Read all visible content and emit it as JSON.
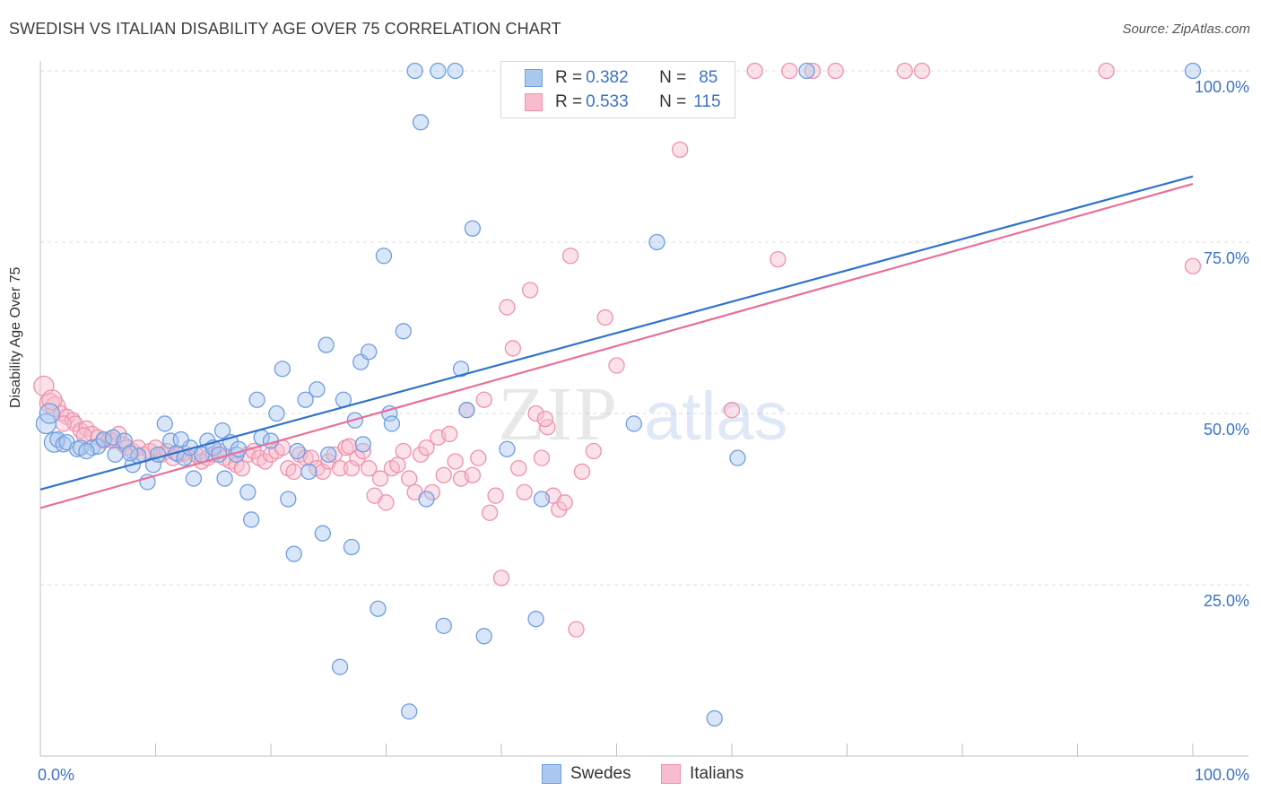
{
  "header": {
    "title": "SWEDISH VS ITALIAN DISABILITY AGE OVER 75 CORRELATION CHART",
    "source": "Source: ZipAtlas.com"
  },
  "watermark": {
    "zip": "ZIP",
    "atlas": "atlas"
  },
  "colors": {
    "swedes_fill": "#aac8f0",
    "swedes_stroke": "#6f9ee0",
    "swedes_line": "#2f73c9",
    "italians_fill": "#f7bccd",
    "italians_stroke": "#ee92ad",
    "italians_line": "#e8709a",
    "axis_text": "#3a73c9",
    "grid": "#dddddd"
  },
  "legend_top": {
    "rows": [
      {
        "r_label": "R =",
        "r_value": "0.382",
        "n_label": "N =",
        "n_value": "85"
      },
      {
        "r_label": "R =",
        "r_value": "0.533",
        "n_label": "N =",
        "n_value": "115"
      }
    ]
  },
  "legend_bottom": {
    "swedes": "Swedes",
    "italians": "Italians"
  },
  "chart_data": {
    "type": "scatter",
    "title": "SWEDISH VS ITALIAN DISABILITY AGE OVER 75 CORRELATION CHART",
    "xlabel": "",
    "ylabel": "Disability Age Over 75",
    "xlim": [
      0,
      100
    ],
    "ylim": [
      0,
      100
    ],
    "x_tick_labels": [
      "0.0%",
      "100.0%"
    ],
    "y_ticks": [
      25,
      50,
      75,
      100
    ],
    "y_tick_labels": [
      "25.0%",
      "50.0%",
      "75.0%",
      "100.0%"
    ],
    "grid": true,
    "legend_position": "top-center",
    "series": [
      {
        "name": "Swedes",
        "r": 0.382,
        "n": 85,
        "trend": {
          "x": [
            0,
            100
          ],
          "y": [
            38.9,
            84.6
          ]
        },
        "points": [
          [
            0.5,
            48.5
          ],
          [
            1.2,
            45.8
          ],
          [
            1.5,
            46.2
          ],
          [
            2,
            45.5
          ],
          [
            2.3,
            45.8
          ],
          [
            3.2,
            44.8
          ],
          [
            3.5,
            45
          ],
          [
            4.5,
            45
          ],
          [
            5,
            45.2
          ],
          [
            5.5,
            46.2
          ],
          [
            6.3,
            46.5
          ],
          [
            6.5,
            44
          ],
          [
            7.3,
            46
          ],
          [
            8,
            42.5
          ],
          [
            8.5,
            43.8
          ],
          [
            9.3,
            40
          ],
          [
            9.8,
            42.5
          ],
          [
            10.2,
            44
          ],
          [
            10.8,
            48.5
          ],
          [
            11.3,
            46
          ],
          [
            11.8,
            44.2
          ],
          [
            12.5,
            43.5
          ],
          [
            13,
            45
          ],
          [
            13.3,
            40.5
          ],
          [
            14,
            44
          ],
          [
            14.5,
            46
          ],
          [
            15,
            45
          ],
          [
            15.5,
            44
          ],
          [
            15.8,
            47.5
          ],
          [
            16,
            40.5
          ],
          [
            16.5,
            45.8
          ],
          [
            17,
            44
          ],
          [
            18,
            38.5
          ],
          [
            18.3,
            34.5
          ],
          [
            18.8,
            52
          ],
          [
            19.2,
            46.5
          ],
          [
            20,
            46
          ],
          [
            20.5,
            50
          ],
          [
            21,
            56.5
          ],
          [
            21.5,
            37.5
          ],
          [
            22,
            29.5
          ],
          [
            22.3,
            44.5
          ],
          [
            23,
            52
          ],
          [
            23.3,
            41.5
          ],
          [
            24,
            53.5
          ],
          [
            24.5,
            32.5
          ],
          [
            24.8,
            60
          ],
          [
            25,
            44
          ],
          [
            26,
            13
          ],
          [
            26.3,
            52
          ],
          [
            27,
            30.5
          ],
          [
            27.3,
            49
          ],
          [
            27.8,
            57.5
          ],
          [
            28,
            45.5
          ],
          [
            28.5,
            59
          ],
          [
            29.3,
            21.5
          ],
          [
            29.8,
            73
          ],
          [
            30.3,
            50
          ],
          [
            30.5,
            48.5
          ],
          [
            31.5,
            62
          ],
          [
            32,
            6.5
          ],
          [
            32.5,
            100
          ],
          [
            33,
            92.5
          ],
          [
            33.5,
            37.5
          ],
          [
            34.5,
            100
          ],
          [
            35,
            19
          ],
          [
            36,
            100
          ],
          [
            36.5,
            56.5
          ],
          [
            37,
            50.5
          ],
          [
            37.5,
            77
          ],
          [
            38.5,
            17.5
          ],
          [
            40.5,
            44.8
          ],
          [
            43,
            20
          ],
          [
            43.5,
            37.5
          ],
          [
            51.5,
            48.5
          ],
          [
            53.5,
            75
          ],
          [
            58.5,
            5.5
          ],
          [
            60.5,
            43.5
          ],
          [
            66.5,
            100
          ],
          [
            100,
            100
          ],
          [
            0.8,
            50
          ],
          [
            4,
            44.5
          ],
          [
            7.8,
            44.2
          ],
          [
            12.2,
            46.2
          ],
          [
            17.2,
            44.8
          ]
        ]
      },
      {
        "name": "Italians",
        "r": 0.533,
        "n": 115,
        "trend": {
          "x": [
            0,
            100
          ],
          "y": [
            36.2,
            83.5
          ]
        },
        "points": [
          [
            0.3,
            54
          ],
          [
            0.8,
            51.5
          ],
          [
            1.3,
            51
          ],
          [
            1.8,
            50
          ],
          [
            2.3,
            49.5
          ],
          [
            2.8,
            49
          ],
          [
            3,
            48.5
          ],
          [
            3.5,
            47.5
          ],
          [
            4,
            47.8
          ],
          [
            4.5,
            47
          ],
          [
            5,
            46.5
          ],
          [
            5.5,
            46
          ],
          [
            6,
            46.2
          ],
          [
            6.3,
            46
          ],
          [
            6.8,
            47
          ],
          [
            7.2,
            45.5
          ],
          [
            7.5,
            45
          ],
          [
            8,
            44.5
          ],
          [
            8.5,
            45
          ],
          [
            9,
            44
          ],
          [
            9.5,
            44.5
          ],
          [
            10,
            45
          ],
          [
            10.5,
            44
          ],
          [
            11,
            44.5
          ],
          [
            11.5,
            43.5
          ],
          [
            12,
            44
          ],
          [
            12.5,
            44.2
          ],
          [
            13,
            43.5
          ],
          [
            13.5,
            44
          ],
          [
            14,
            43
          ],
          [
            14.5,
            43.5
          ],
          [
            15,
            44
          ],
          [
            15.5,
            44.5
          ],
          [
            16,
            43.5
          ],
          [
            16.5,
            43
          ],
          [
            17,
            42.5
          ],
          [
            17.5,
            42
          ],
          [
            18,
            44
          ],
          [
            18.5,
            44.5
          ],
          [
            19,
            43.5
          ],
          [
            19.5,
            43
          ],
          [
            20,
            44
          ],
          [
            20.5,
            44.5
          ],
          [
            21,
            45
          ],
          [
            21.5,
            42
          ],
          [
            22,
            41.5
          ],
          [
            22.5,
            44
          ],
          [
            23,
            43.5
          ],
          [
            23.5,
            43.5
          ],
          [
            24,
            42
          ],
          [
            24.5,
            41.5
          ],
          [
            25,
            43
          ],
          [
            25.5,
            44
          ],
          [
            26,
            42
          ],
          [
            26.5,
            45
          ],
          [
            27,
            42
          ],
          [
            27.5,
            43.5
          ],
          [
            28,
            44.5
          ],
          [
            28.5,
            42
          ],
          [
            29,
            38
          ],
          [
            29.5,
            40.5
          ],
          [
            30,
            37
          ],
          [
            30.5,
            42
          ],
          [
            31,
            42.5
          ],
          [
            31.5,
            44.5
          ],
          [
            32,
            40.5
          ],
          [
            32.5,
            38.5
          ],
          [
            33,
            44
          ],
          [
            33.5,
            45
          ],
          [
            34,
            38.5
          ],
          [
            34.5,
            46.5
          ],
          [
            35,
            41
          ],
          [
            35.5,
            47
          ],
          [
            36,
            43
          ],
          [
            36.5,
            40.5
          ],
          [
            37,
            50.5
          ],
          [
            37.5,
            41
          ],
          [
            38,
            43.5
          ],
          [
            38.5,
            52
          ],
          [
            39,
            35.5
          ],
          [
            39.5,
            38
          ],
          [
            40,
            26
          ],
          [
            40.5,
            65.5
          ],
          [
            41,
            59.5
          ],
          [
            41.5,
            42
          ],
          [
            42,
            38.5
          ],
          [
            42.5,
            68
          ],
          [
            43,
            50
          ],
          [
            43.5,
            43.5
          ],
          [
            44,
            48
          ],
          [
            44.5,
            38
          ],
          [
            45,
            36
          ],
          [
            45.5,
            37
          ],
          [
            46,
            73
          ],
          [
            46.5,
            18.5
          ],
          [
            47,
            41.5
          ],
          [
            48,
            44.5
          ],
          [
            49,
            64
          ],
          [
            50,
            57
          ],
          [
            55.5,
            88.5
          ],
          [
            60,
            50.5
          ],
          [
            62,
            100
          ],
          [
            64,
            72.5
          ],
          [
            65,
            100
          ],
          [
            67,
            100
          ],
          [
            69,
            100
          ],
          [
            75,
            100
          ],
          [
            76.5,
            100
          ],
          [
            92.5,
            100
          ],
          [
            100,
            71.5
          ],
          [
            1,
            52
          ],
          [
            2,
            48.5
          ],
          [
            3.8,
            46.8
          ],
          [
            26.8,
            45.2
          ],
          [
            43.8,
            49.2
          ]
        ]
      }
    ]
  }
}
